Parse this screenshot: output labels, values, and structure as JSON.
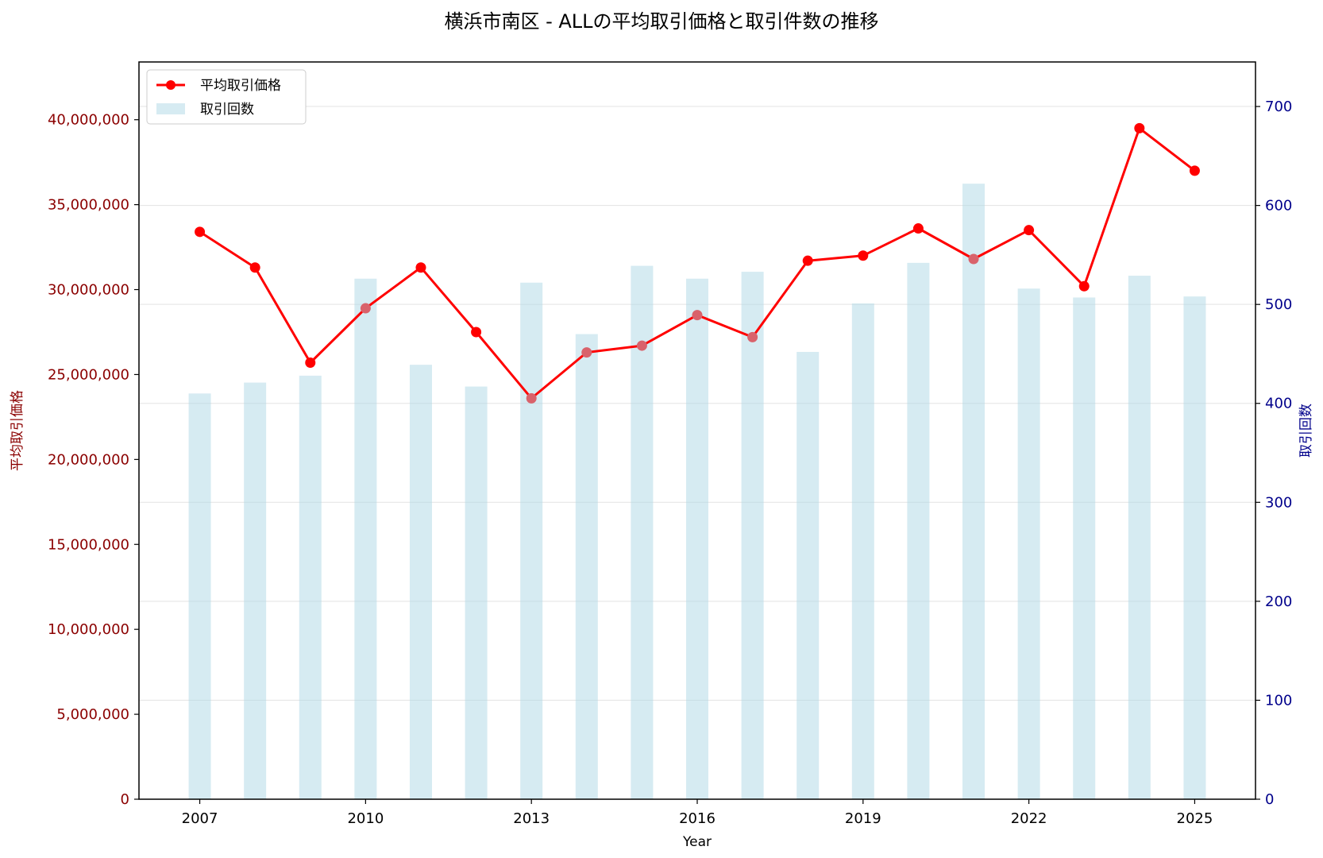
{
  "chart_data": {
    "type": "bar+line",
    "title": "横浜市南区 - ALLの平均取引価格と取引件数の推移",
    "xlabel": "Year",
    "ylabel_left": "平均取引価格",
    "ylabel_right": "取引回数",
    "x": [
      2007,
      2008,
      2009,
      2010,
      2011,
      2012,
      2013,
      2014,
      2015,
      2016,
      2017,
      2018,
      2019,
      2020,
      2021,
      2022,
      2023,
      2024,
      2025
    ],
    "x_ticks": [
      "2007",
      "2010",
      "2013",
      "2016",
      "2019",
      "2022",
      "2025"
    ],
    "xlim": [
      2005.9,
      2026.1
    ],
    "series": [
      {
        "name": "平均取引価格",
        "type": "line",
        "axis": "left",
        "color": "#ff0000",
        "values": [
          33400000,
          31300000,
          25700000,
          28900000,
          31300000,
          27500000,
          23600000,
          26300000,
          26700000,
          28500000,
          27200000,
          31700000,
          32000000,
          33600000,
          31800000,
          33500000,
          30200000,
          39500000,
          37000000
        ]
      },
      {
        "name": "取引回数",
        "type": "bar",
        "axis": "right",
        "color": "#add8e6",
        "values": [
          410,
          421,
          428,
          526,
          439,
          417,
          522,
          470,
          539,
          526,
          533,
          452,
          501,
          542,
          622,
          516,
          507,
          529,
          508
        ]
      }
    ],
    "ylim_left": [
      0,
      43400000
    ],
    "ylim_right": [
      0,
      745
    ],
    "yticks_left": [
      "0",
      "5,000,000",
      "10,000,000",
      "15,000,000",
      "20,000,000",
      "25,000,000",
      "30,000,000",
      "35,000,000",
      "40,000,000"
    ],
    "yticks_right": [
      "0",
      "100",
      "200",
      "300",
      "400",
      "500",
      "600",
      "700"
    ],
    "grid": "horizontal",
    "legend": "top-left"
  }
}
